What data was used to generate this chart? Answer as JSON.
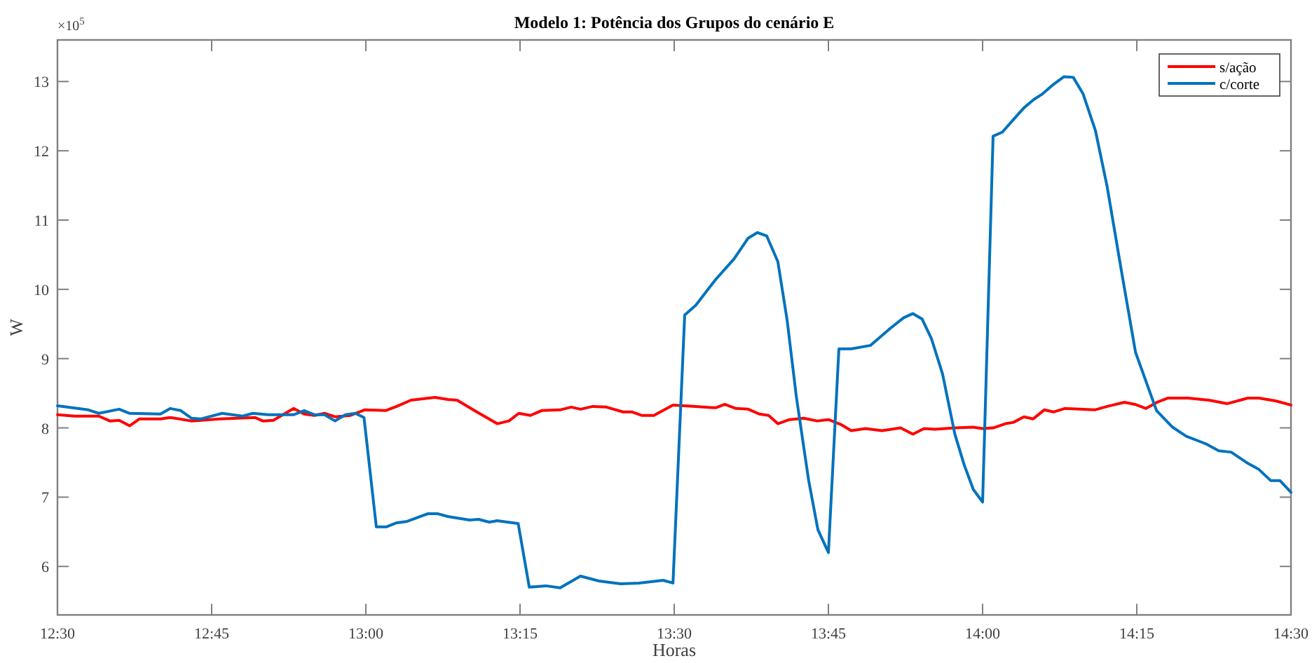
{
  "chart_data": {
    "type": "line",
    "title": "Modelo 1: Potência dos Grupos do cenário E",
    "xlabel": "Horas",
    "ylabel": "W",
    "annotations": [
      "×10$^{5}$"
    ],
    "xlim": [
      12.5,
      14.5
    ],
    "xticks": [
      {
        "value": 12.5,
        "label": "12:30"
      },
      {
        "value": 12.75,
        "label": "12:45"
      },
      {
        "value": 13,
        "label": "13:00"
      },
      {
        "value": 13.25,
        "label": "13:15"
      },
      {
        "value": 13.5,
        "label": "13:30"
      },
      {
        "value": 13.75,
        "label": "13:45"
      },
      {
        "value": 14,
        "label": "14:00"
      },
      {
        "value": 14.25,
        "label": "14:15"
      },
      {
        "value": 14.5,
        "label": "14:30"
      }
    ],
    "ylim": [
      5.3,
      13.6
    ],
    "yticks": [
      6,
      7,
      8,
      9,
      10,
      11,
      12,
      13
    ],
    "grid": false,
    "legend": "top right",
    "line_style": "solid",
    "series": [
      {
        "name": "s/ação",
        "color": "#ff0000",
        "x": [
          12.5,
          12.528,
          12.567,
          12.585,
          12.6,
          12.617,
          12.633,
          12.667,
          12.683,
          12.717,
          12.763,
          12.82,
          12.833,
          12.85,
          12.883,
          12.9,
          12.917,
          12.933,
          12.95,
          12.975,
          12.998,
          13.032,
          13.05,
          13.073,
          13.112,
          13.133,
          13.148,
          13.178,
          13.213,
          13.232,
          13.248,
          13.267,
          13.285,
          13.315,
          13.333,
          13.348,
          13.368,
          13.39,
          13.417,
          13.432,
          13.447,
          13.467,
          13.498,
          13.535,
          13.567,
          13.582,
          13.6,
          13.62,
          13.638,
          13.653,
          13.668,
          13.687,
          13.71,
          13.732,
          13.75,
          13.77,
          13.787,
          13.81,
          13.837,
          13.867,
          13.887,
          13.905,
          13.923,
          13.955,
          13.985,
          14.0,
          14.017,
          14.037,
          14.05,
          14.067,
          14.082,
          14.1,
          14.115,
          14.133,
          14.182,
          14.202,
          14.23,
          14.247,
          14.265,
          14.283,
          14.3,
          14.333,
          14.367,
          14.397,
          14.43,
          14.448,
          14.475,
          14.5
        ],
        "values": [
          8.19,
          8.17,
          8.17,
          8.1,
          8.11,
          8.03,
          8.13,
          8.13,
          8.15,
          8.1,
          8.13,
          8.15,
          8.1,
          8.11,
          8.28,
          8.2,
          8.18,
          8.21,
          8.16,
          8.18,
          8.26,
          8.25,
          8.31,
          8.4,
          8.44,
          8.41,
          8.4,
          8.24,
          8.06,
          8.1,
          8.21,
          8.18,
          8.25,
          8.26,
          8.3,
          8.27,
          8.31,
          8.3,
          8.23,
          8.23,
          8.18,
          8.18,
          8.33,
          8.31,
          8.29,
          8.34,
          8.28,
          8.27,
          8.2,
          8.18,
          8.06,
          8.12,
          8.14,
          8.1,
          8.12,
          8.05,
          7.96,
          7.99,
          7.96,
          8.0,
          7.91,
          7.99,
          7.98,
          8.0,
          8.01,
          7.99,
          8.0,
          8.06,
          8.08,
          8.16,
          8.13,
          8.26,
          8.23,
          8.28,
          8.26,
          8.31,
          8.37,
          8.34,
          8.28,
          8.37,
          8.43,
          8.43,
          8.4,
          8.35,
          8.43,
          8.43,
          8.39,
          8.33
        ]
      },
      {
        "name": "c/corte",
        "color": "#0072bd",
        "x": [
          12.5,
          12.55,
          12.567,
          12.6,
          12.617,
          12.667,
          12.683,
          12.7,
          12.717,
          12.733,
          12.767,
          12.8,
          12.817,
          12.842,
          12.883,
          12.9,
          12.917,
          12.933,
          12.95,
          12.967,
          12.983,
          12.997,
          13.017,
          13.033,
          13.05,
          13.067,
          13.1,
          13.117,
          13.133,
          13.168,
          13.183,
          13.2,
          13.213,
          13.247,
          13.265,
          13.292,
          13.315,
          13.348,
          13.378,
          13.413,
          13.443,
          13.482,
          13.498,
          13.517,
          13.535,
          13.567,
          13.597,
          13.62,
          13.635,
          13.65,
          13.668,
          13.683,
          13.698,
          13.718,
          13.733,
          13.75,
          13.767,
          13.787,
          13.818,
          13.848,
          13.872,
          13.887,
          13.902,
          13.917,
          13.935,
          13.955,
          13.97,
          13.985,
          14.0,
          14.017,
          14.032,
          14.05,
          14.067,
          14.083,
          14.097,
          14.115,
          14.132,
          14.147,
          14.163,
          14.183,
          14.202,
          14.225,
          14.248,
          14.282,
          14.308,
          14.33,
          14.362,
          14.383,
          14.403,
          14.428,
          14.448,
          14.467,
          14.482,
          14.5
        ],
        "values": [
          8.32,
          8.26,
          8.21,
          8.27,
          8.21,
          8.2,
          8.28,
          8.25,
          8.14,
          8.13,
          8.21,
          8.17,
          8.21,
          8.19,
          8.19,
          8.25,
          8.19,
          8.19,
          8.1,
          8.19,
          8.21,
          8.15,
          6.57,
          6.57,
          6.63,
          6.65,
          6.76,
          6.76,
          6.72,
          6.67,
          6.68,
          6.64,
          6.66,
          6.62,
          5.7,
          5.72,
          5.69,
          5.86,
          5.79,
          5.75,
          5.76,
          5.8,
          5.76,
          9.63,
          9.77,
          10.14,
          10.44,
          10.74,
          10.82,
          10.77,
          10.4,
          9.56,
          8.45,
          7.24,
          6.53,
          6.2,
          9.14,
          9.14,
          9.19,
          9.42,
          9.59,
          9.65,
          9.57,
          9.29,
          8.78,
          7.91,
          7.47,
          7.11,
          6.93,
          12.21,
          12.27,
          12.45,
          12.62,
          12.74,
          12.82,
          12.96,
          13.07,
          13.06,
          12.82,
          12.29,
          11.48,
          10.27,
          9.09,
          8.25,
          8.01,
          7.88,
          7.77,
          7.67,
          7.65,
          7.5,
          7.4,
          7.24,
          7.24,
          7.07
        ]
      }
    ]
  }
}
